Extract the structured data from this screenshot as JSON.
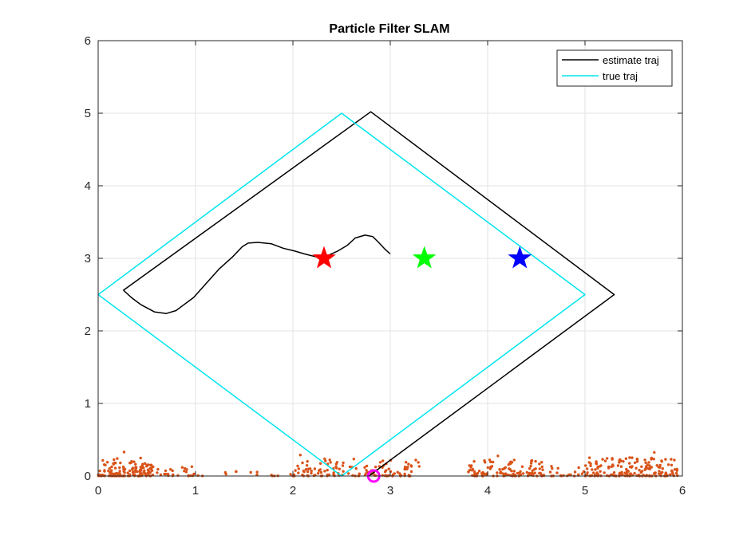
{
  "chart_data": {
    "type": "line",
    "title": "Particle Filter SLAM",
    "xlabel": "",
    "ylabel": "",
    "xlim": [
      0,
      6
    ],
    "ylim": [
      0,
      6
    ],
    "xticks": [
      0,
      1,
      2,
      3,
      4,
      5,
      6
    ],
    "yticks": [
      0,
      1,
      2,
      3,
      4,
      5,
      6
    ],
    "grid": true,
    "legend_position": "top-right",
    "series": [
      {
        "name": "estimate traj",
        "color": "#000000",
        "x": [
          3.0,
          2.95,
          2.88,
          2.82,
          2.74,
          2.64,
          2.56,
          2.46,
          2.36,
          2.24,
          2.12,
          2.02,
          1.9,
          1.78,
          1.64,
          1.54,
          1.48,
          1.38,
          1.24,
          1.1,
          0.98,
          0.88,
          0.8,
          0.7,
          0.58,
          0.44,
          0.34,
          0.26,
          2.8,
          5.3,
          2.78
        ],
        "y": [
          3.06,
          3.12,
          3.22,
          3.3,
          3.32,
          3.28,
          3.18,
          3.1,
          3.04,
          3.02,
          3.06,
          3.1,
          3.14,
          3.2,
          3.22,
          3.21,
          3.16,
          3.02,
          2.85,
          2.64,
          2.46,
          2.36,
          2.28,
          2.24,
          2.26,
          2.36,
          2.46,
          2.56,
          5.02,
          2.5,
          0.0
        ]
      },
      {
        "name": "true traj",
        "color": "#00e5ee",
        "x": [
          0.0,
          2.5,
          5.0,
          2.5,
          0.0
        ],
        "y": [
          2.5,
          5.0,
          2.5,
          0.0,
          2.5
        ]
      }
    ],
    "landmarks": [
      {
        "x": 2.32,
        "y": 3.0,
        "color": "#ff0000",
        "marker": "star"
      },
      {
        "x": 3.35,
        "y": 3.0,
        "color": "#00ff00",
        "marker": "star"
      },
      {
        "x": 4.33,
        "y": 3.0,
        "color": "#0000ff",
        "marker": "star"
      }
    ],
    "robot": {
      "x": 2.83,
      "y": 0.0,
      "color": "#ff00ff",
      "marker": "circle"
    },
    "particles": {
      "color": "#d95319",
      "marker": "dot",
      "clusters": [
        {
          "x_min": 0.0,
          "x_max": 0.55,
          "y_max": 0.25,
          "count": 140
        },
        {
          "x_min": 0.55,
          "x_max": 1.0,
          "y_max": 0.14,
          "count": 28
        },
        {
          "x_min": 1.0,
          "x_max": 2.0,
          "y_max": 0.08,
          "count": 14
        },
        {
          "x_min": 2.0,
          "x_max": 3.3,
          "y_max": 0.24,
          "count": 130
        },
        {
          "x_min": 3.8,
          "x_max": 4.6,
          "y_max": 0.24,
          "count": 115
        },
        {
          "x_min": 4.6,
          "x_max": 5.0,
          "y_max": 0.12,
          "count": 20
        },
        {
          "x_min": 5.0,
          "x_max": 5.95,
          "y_max": 0.26,
          "count": 170
        }
      ]
    }
  }
}
